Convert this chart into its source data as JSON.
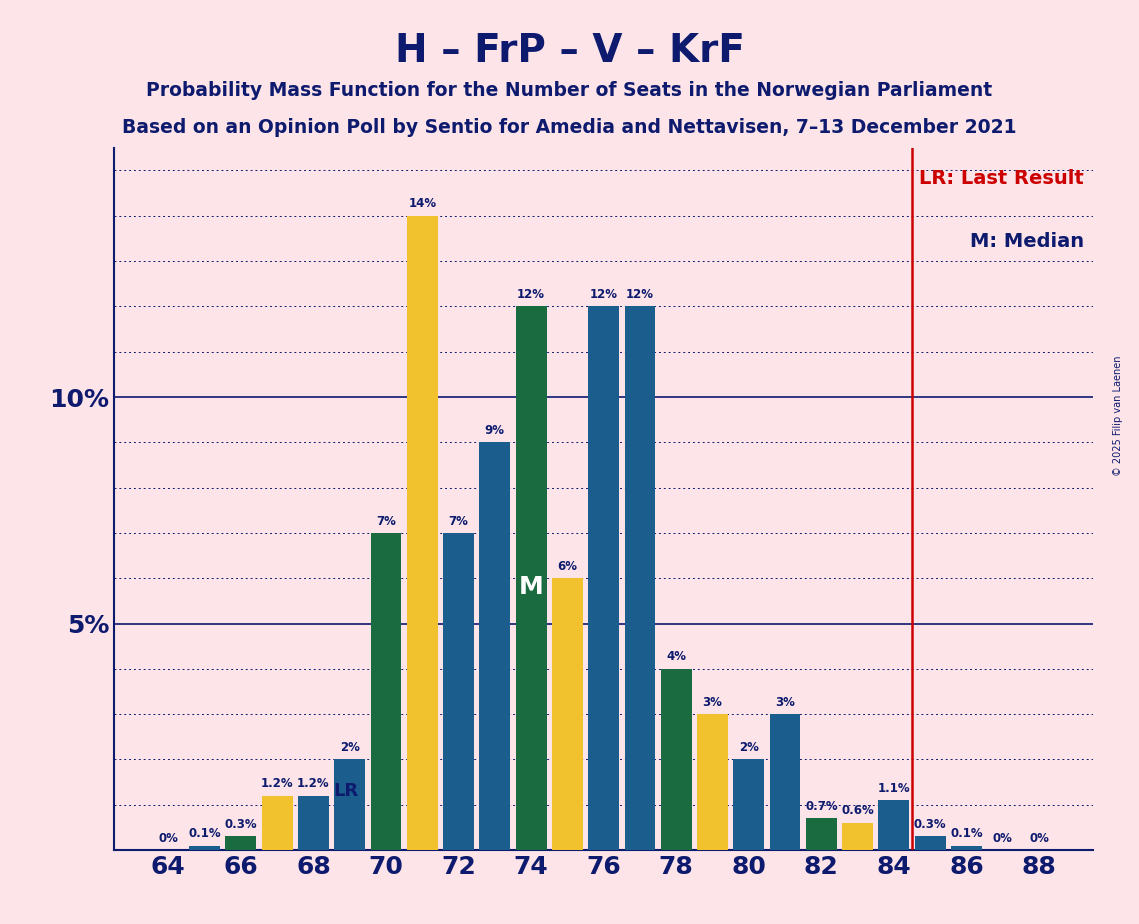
{
  "title": "H – FrP – V – KrF",
  "subtitle1": "Probability Mass Function for the Number of Seats in the Norwegian Parliament",
  "subtitle2": "Based on an Opinion Poll by Sentio for Amedia and Nettavisen, 7–13 December 2021",
  "copyright": "© 2025 Filip van Laenen",
  "seats": [
    64,
    65,
    66,
    67,
    68,
    69,
    70,
    71,
    72,
    73,
    74,
    75,
    76,
    77,
    78,
    79,
    80,
    81,
    82,
    83,
    84,
    85,
    86,
    87,
    88
  ],
  "values": [
    0.0,
    0.1,
    0.3,
    1.2,
    1.2,
    2.0,
    7.0,
    14.0,
    7.0,
    9.0,
    12.0,
    6.0,
    12.0,
    12.0,
    4.0,
    3.0,
    2.0,
    3.0,
    0.7,
    0.6,
    1.1,
    0.3,
    0.1,
    0.0,
    0.0
  ],
  "bar_colors": [
    "#1b5e8e",
    "#1b5e8e",
    "#1a6b40",
    "#f2c12e",
    "#1b5e8e",
    "#1b5e8e",
    "#1a6b40",
    "#f2c12e",
    "#1b5e8e",
    "#1b5e8e",
    "#1a6b40",
    "#f2c12e",
    "#1b5e8e",
    "#1b5e8e",
    "#1a6b40",
    "#f2c12e",
    "#1b5e8e",
    "#1b5e8e",
    "#1a6b40",
    "#f2c12e",
    "#1b5e8e",
    "#1b5e8e",
    "#1b5e8e",
    "#1b5e8e",
    "#1b5e8e"
  ],
  "median_seat": 74,
  "lr_seat": 85,
  "lr_line_x": 84.5,
  "background_color": "#fce4e8",
  "title_color": "#0d1a6e",
  "lr_color": "#cc0000",
  "ylim": [
    0,
    15.5
  ],
  "xlim": [
    62.5,
    89.5
  ],
  "xtick_positions": [
    64,
    66,
    68,
    70,
    72,
    74,
    76,
    78,
    80,
    82,
    84,
    86,
    88
  ],
  "xtick_labels": [
    "64",
    "66",
    "68",
    "70",
    "72",
    "74",
    "76",
    "78",
    "80",
    "82",
    "84",
    "86",
    "88"
  ],
  "solid_gridlines": [
    5.0,
    10.0
  ],
  "dotted_gridlines": [
    1,
    2,
    3,
    4,
    6,
    7,
    8,
    9,
    11,
    12,
    13,
    14,
    15
  ],
  "lr_label": "LR: Last Result",
  "m_label": "M: Median",
  "m_bar_label": "M",
  "lr_bar_label": "LR",
  "lr_bar_x": 68.55,
  "lr_bar_y": 1.1,
  "m_bar_x": 74.0,
  "m_bar_y": 5.8
}
